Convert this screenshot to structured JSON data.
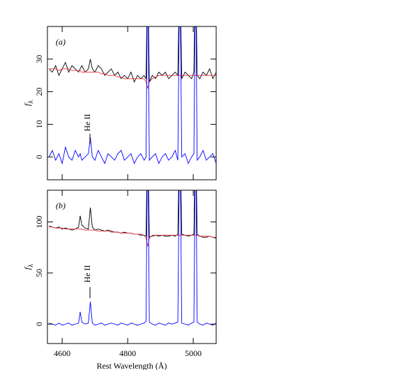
{
  "chart_data": [
    {
      "type": "line",
      "panel_label": "(a)",
      "annotation": "He II",
      "y_label": "f",
      "y_label_sub": "λ",
      "xtick_labels": false,
      "xlim": [
        4555,
        5070
      ],
      "ylim": [
        -7,
        40
      ],
      "xticks": [
        4600,
        4800,
        5000
      ],
      "yticks": [
        0,
        10,
        20,
        30
      ],
      "x": [
        4560,
        4570,
        4580,
        4590,
        4600,
        4610,
        4620,
        4630,
        4640,
        4650,
        4655,
        4660,
        4670,
        4680,
        4686,
        4692,
        4700,
        4710,
        4720,
        4730,
        4740,
        4750,
        4760,
        4770,
        4780,
        4790,
        4800,
        4810,
        4820,
        4830,
        4840,
        4850,
        4856,
        4861,
        4866,
        4875,
        4885,
        4895,
        4905,
        4915,
        4925,
        4935,
        4945,
        4953,
        4959,
        4965,
        4975,
        4985,
        4995,
        5002,
        5007,
        5012,
        5020,
        5030,
        5040,
        5050,
        5060,
        5070
      ],
      "series": [
        {
          "color": "#000000",
          "values": [
            27,
            26,
            28,
            25,
            27,
            29,
            26,
            28,
            27,
            26,
            27,
            28,
            26,
            27,
            30,
            27,
            26,
            28,
            27,
            25,
            26,
            27,
            25,
            26,
            24,
            25,
            24,
            26,
            23,
            25,
            24,
            25,
            24,
            60,
            23,
            25,
            24,
            26,
            25,
            26,
            24,
            25,
            26,
            25,
            60,
            24,
            26,
            25,
            24,
            26,
            60,
            25,
            24,
            26,
            25,
            27,
            24,
            26
          ]
        },
        {
          "color": "#e8303a",
          "values": [
            27,
            27,
            27,
            26.5,
            27,
            27,
            27,
            26.5,
            26.5,
            26.5,
            26.5,
            26,
            26,
            26,
            26,
            26,
            26,
            26,
            25.5,
            25.5,
            25,
            25,
            25,
            24.5,
            24.5,
            24,
            24,
            24,
            24,
            24,
            24,
            24,
            23,
            21,
            23,
            24,
            24.5,
            25,
            25,
            25,
            25,
            25,
            25,
            25,
            25,
            25,
            25,
            25,
            25,
            25,
            25,
            25,
            25,
            25,
            25,
            25,
            25,
            25
          ]
        },
        {
          "color": "#0000ff",
          "values": [
            0,
            2,
            -1,
            1,
            -2,
            3,
            0,
            -1,
            2,
            0,
            1,
            -1,
            0,
            1,
            6,
            0,
            -1,
            2,
            0,
            -2,
            1,
            0,
            -1,
            1,
            2,
            -1,
            0,
            1,
            -2,
            0,
            1,
            -1,
            0,
            60,
            -1,
            0,
            1,
            -2,
            0,
            1,
            -1,
            0,
            2,
            -1,
            60,
            0,
            1,
            -2,
            0,
            1,
            60,
            -1,
            0,
            2,
            -1,
            0,
            1,
            -2
          ]
        }
      ]
    },
    {
      "type": "line",
      "panel_label": "(b)",
      "annotation": "He II",
      "y_label": "f",
      "y_label_sub": "λ",
      "xtick_labels": true,
      "x_label": "Rest Wavelength (Å)",
      "xlim": [
        4555,
        5070
      ],
      "ylim": [
        -19,
        131
      ],
      "xticks": [
        4600,
        4800,
        5000
      ],
      "yticks": [
        0,
        50,
        100
      ],
      "x": [
        4560,
        4570,
        4580,
        4590,
        4600,
        4610,
        4620,
        4630,
        4640,
        4650,
        4655,
        4660,
        4670,
        4680,
        4686,
        4692,
        4700,
        4710,
        4720,
        4730,
        4740,
        4750,
        4760,
        4770,
        4780,
        4790,
        4800,
        4810,
        4820,
        4830,
        4840,
        4850,
        4856,
        4861,
        4866,
        4875,
        4885,
        4895,
        4905,
        4915,
        4925,
        4935,
        4945,
        4953,
        4959,
        4965,
        4975,
        4985,
        4995,
        5002,
        5007,
        5012,
        5020,
        5030,
        5040,
        5050,
        5060,
        5070
      ],
      "series": [
        {
          "color": "#000000",
          "values": [
            96,
            95,
            94,
            95,
            93,
            94,
            93,
            92,
            93,
            95,
            106,
            97,
            94,
            93,
            114,
            95,
            92,
            93,
            92,
            91,
            92,
            91,
            90,
            90,
            89,
            90,
            89,
            89,
            88,
            88,
            87,
            87,
            86,
            200,
            85,
            86,
            87,
            86,
            87,
            86,
            86,
            87,
            86,
            88,
            200,
            88,
            87,
            86,
            87,
            88,
            200,
            88,
            86,
            85,
            85,
            86,
            85,
            84
          ]
        },
        {
          "color": "#e8303a",
          "values": [
            95,
            95,
            94,
            94,
            94,
            93,
            93,
            93,
            93,
            93,
            93,
            93,
            92,
            92,
            92,
            92,
            92,
            91,
            91,
            91,
            91,
            90,
            90,
            90,
            89,
            89,
            89,
            89,
            88,
            88,
            88,
            87,
            84,
            76,
            84,
            87,
            87,
            87,
            87,
            87,
            87,
            87,
            87,
            87,
            87,
            87,
            87,
            87,
            87,
            87,
            87,
            87,
            86,
            86,
            86,
            86,
            85,
            85
          ]
        },
        {
          "color": "#0000ff",
          "values": [
            1,
            0,
            -1,
            1,
            -1,
            0,
            1,
            -1,
            0,
            1,
            12,
            2,
            0,
            1,
            22,
            1,
            -1,
            0,
            1,
            -1,
            0,
            1,
            0,
            -1,
            1,
            0,
            -1,
            1,
            0,
            -1,
            0,
            1,
            3,
            200,
            2,
            0,
            -1,
            1,
            0,
            -1,
            1,
            0,
            1,
            2,
            200,
            1,
            0,
            -1,
            1,
            2,
            200,
            2,
            0,
            -1,
            1,
            0,
            -1,
            1
          ]
        }
      ]
    }
  ]
}
